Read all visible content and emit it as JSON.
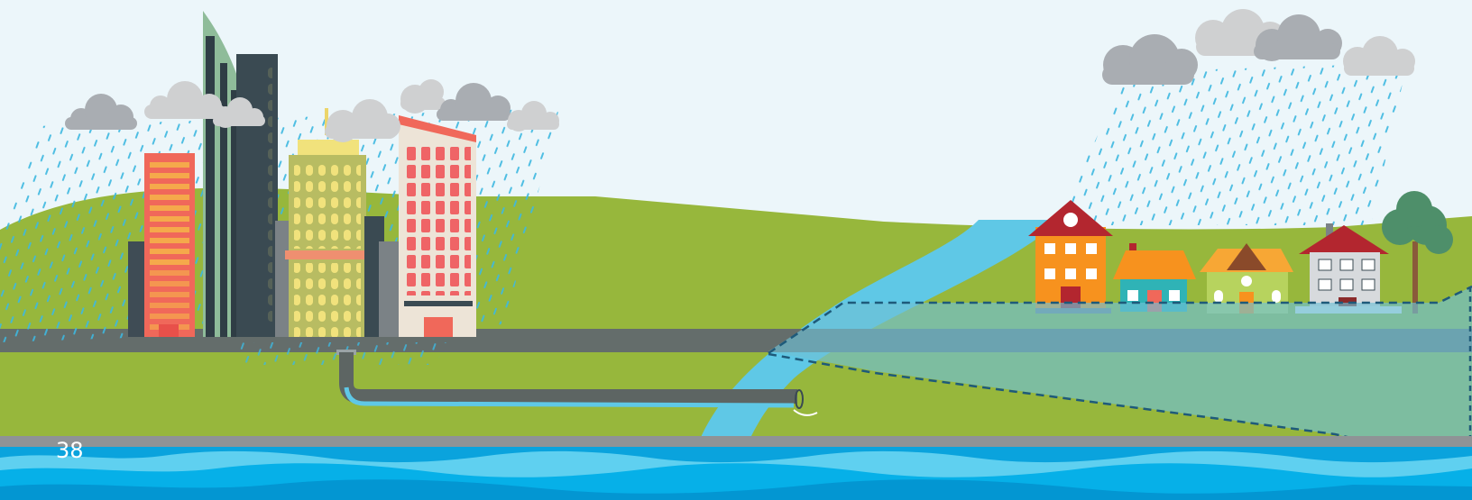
{
  "page": {
    "number": "38"
  },
  "colors": {
    "sky": "#ecf6fa",
    "hill": "#97b73c",
    "road": "#646d6b",
    "river": "#5fc8e6",
    "flood_zone": "#6fc0d6",
    "flood_line": "#1e5a7a",
    "rain": "#3db8e0",
    "cloud_light": "#cfd0d1",
    "cloud_dark": "#a9adb2",
    "pipe": "#5d6563",
    "water_deep": "#0aa3dd"
  },
  "icons": [
    "cloud-icon",
    "rain-icon",
    "skyscraper-icon",
    "house-icon",
    "tree-icon",
    "drain-pipe-icon",
    "river-icon",
    "flood-zone-icon"
  ]
}
